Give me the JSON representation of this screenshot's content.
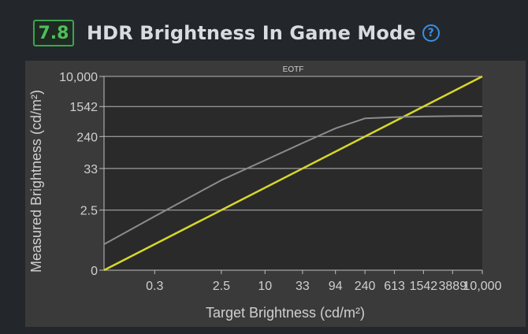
{
  "header": {
    "score": "7.8",
    "title": "HDR Brightness In Game Mode",
    "help_icon": "question-circle-icon"
  },
  "colors": {
    "background": "#23272b",
    "score": "#4fbf5a",
    "help": "#3b8fe0",
    "target_line": "#d7d72a",
    "measured_line": "#8c8c8c",
    "plot_area": "#2a2a2a",
    "grid": "#cfcfcf"
  },
  "chart_data": {
    "type": "line",
    "title": "EOTF",
    "xlabel": "Target Brightness (cd/m²)",
    "ylabel": "Measured Brightness (cd/m²)",
    "x_scale": "log",
    "y_scale": "log",
    "xlim": [
      0.06,
      10000
    ],
    "ylim": [
      0.06,
      10000
    ],
    "x_ticks": [
      {
        "label": "0.3",
        "value": 0.3
      },
      {
        "label": "2.5",
        "value": 2.5
      },
      {
        "label": "10",
        "value": 10
      },
      {
        "label": "33",
        "value": 33
      },
      {
        "label": "94",
        "value": 94
      },
      {
        "label": "240",
        "value": 240
      },
      {
        "label": "613",
        "value": 613
      },
      {
        "label": "1542",
        "value": 1542
      },
      {
        "label": "3889",
        "value": 3889
      },
      {
        "label": "10,000",
        "value": 10000
      }
    ],
    "y_ticks": [
      {
        "label": "0",
        "value": 0.06
      },
      {
        "label": "2.5",
        "value": 2.5
      },
      {
        "label": "33",
        "value": 33
      },
      {
        "label": "240",
        "value": 240
      },
      {
        "label": "1542",
        "value": 1542
      },
      {
        "label": "10,000",
        "value": 10000
      }
    ],
    "grid": true,
    "series": [
      {
        "key": "target",
        "x": [
          0.06,
          10000
        ],
        "y": [
          0.06,
          10000
        ]
      },
      {
        "key": "measured",
        "x": [
          0.06,
          0.3,
          2.5,
          10,
          33,
          94,
          240,
          613,
          1542,
          3889,
          10000
        ],
        "y": [
          0.3,
          1.7,
          16,
          55,
          160,
          400,
          740,
          800,
          830,
          850,
          860
        ]
      }
    ]
  }
}
